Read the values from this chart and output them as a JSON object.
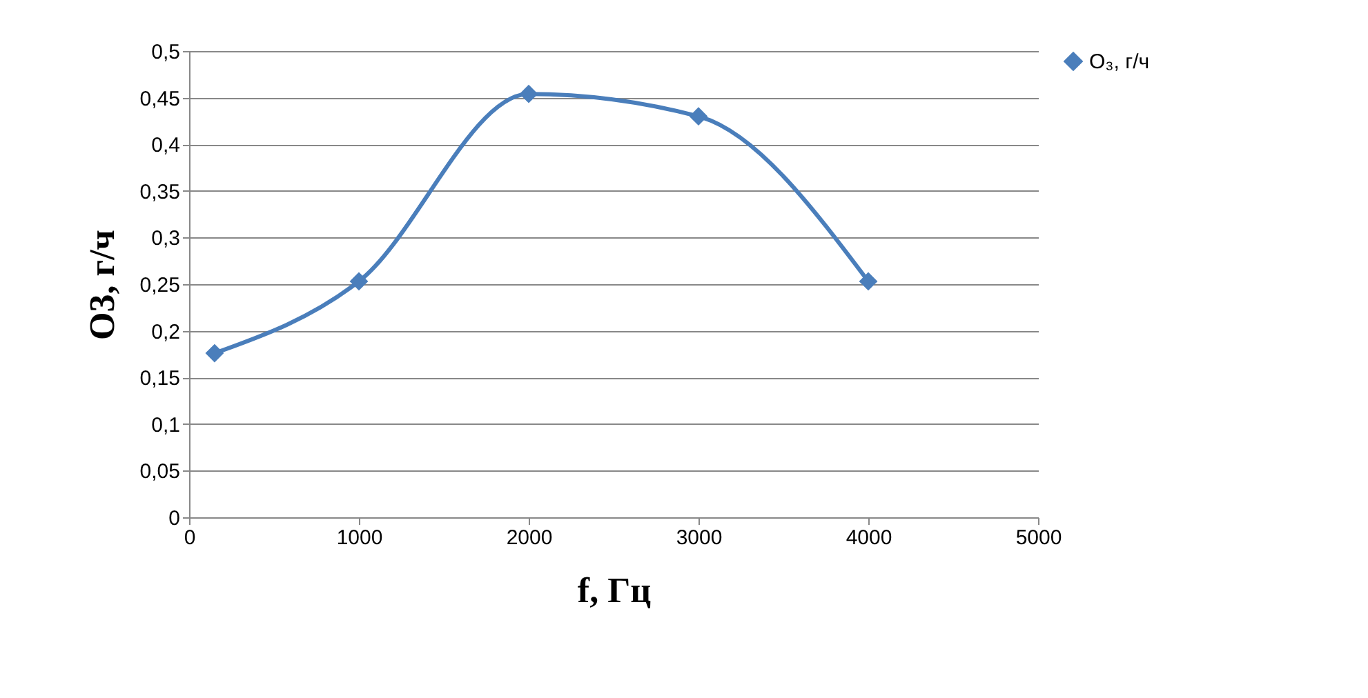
{
  "chart_data": {
    "type": "line",
    "xlabel": "f, Гц",
    "ylabel": "O3, г/ч",
    "x": [
      150,
      1000,
      2000,
      3000,
      4000
    ],
    "series": [
      {
        "name": "O₃, г/ч",
        "color": "#4a7ebb",
        "values": [
          0.176,
          0.253,
          0.454,
          0.43,
          0.253
        ]
      }
    ],
    "xlim": [
      0,
      5000
    ],
    "xticks": [
      0,
      1000,
      2000,
      3000,
      4000,
      5000
    ],
    "ylim": [
      0,
      0.5
    ],
    "yticks": [
      0,
      {
        "value": 0.05,
        "label": "0,05"
      },
      {
        "value": 0.1,
        "label": "0,1"
      },
      {
        "value": 0.15,
        "label": "0,15"
      },
      {
        "value": 0.2,
        "label": "0,2"
      },
      {
        "value": 0.25,
        "label": "0,25"
      },
      {
        "value": 0.3,
        "label": "0,3"
      },
      {
        "value": 0.35,
        "label": "0,35"
      },
      {
        "value": 0.4,
        "label": "0,4"
      },
      {
        "value": 0.45,
        "label": "0,45"
      },
      {
        "value": 0.5,
        "label": "0,5"
      }
    ],
    "grid": "y",
    "legend": "right",
    "marker": "diamond",
    "line_style": "solid"
  }
}
